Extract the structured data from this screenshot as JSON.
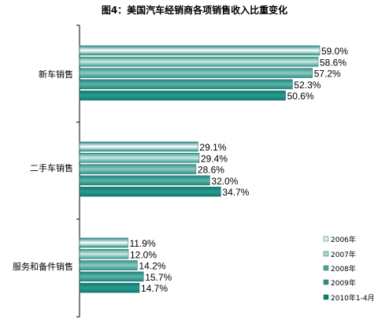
{
  "chart_data": {
    "type": "bar",
    "orientation": "horizontal",
    "title": "图4：美国汽车经销商各项销售收入比重变化",
    "categories": [
      "新车销售",
      "二手车销售",
      "服务和备件销售"
    ],
    "series": [
      {
        "name": "2006年",
        "values": [
          59.0,
          29.1,
          11.9
        ],
        "labels": [
          "59.0%",
          "29.1%",
          "11.9%"
        ]
      },
      {
        "name": "2007年",
        "values": [
          58.6,
          29.4,
          12.0
        ],
        "labels": [
          "58.6%",
          "29.4%",
          "12.0%"
        ]
      },
      {
        "name": "2008年",
        "values": [
          57.2,
          28.6,
          14.2
        ],
        "labels": [
          "57.2%",
          "28.6%",
          "14.2%"
        ]
      },
      {
        "name": "2009年",
        "values": [
          52.3,
          32.0,
          15.7
        ],
        "labels": [
          "52.3%",
          "32.0%",
          "15.7%"
        ]
      },
      {
        "name": "2010年1-4月",
        "values": [
          50.6,
          34.7,
          14.7
        ],
        "labels": [
          "50.6%",
          "34.7%",
          "14.7%"
        ]
      }
    ],
    "unit": "%",
    "legend_position": "bottom-right",
    "grid": false,
    "colors": [
      "#ffffff",
      "#a9d6d0",
      "#4aa49a",
      "#2c8f85",
      "#0f7a70"
    ]
  }
}
